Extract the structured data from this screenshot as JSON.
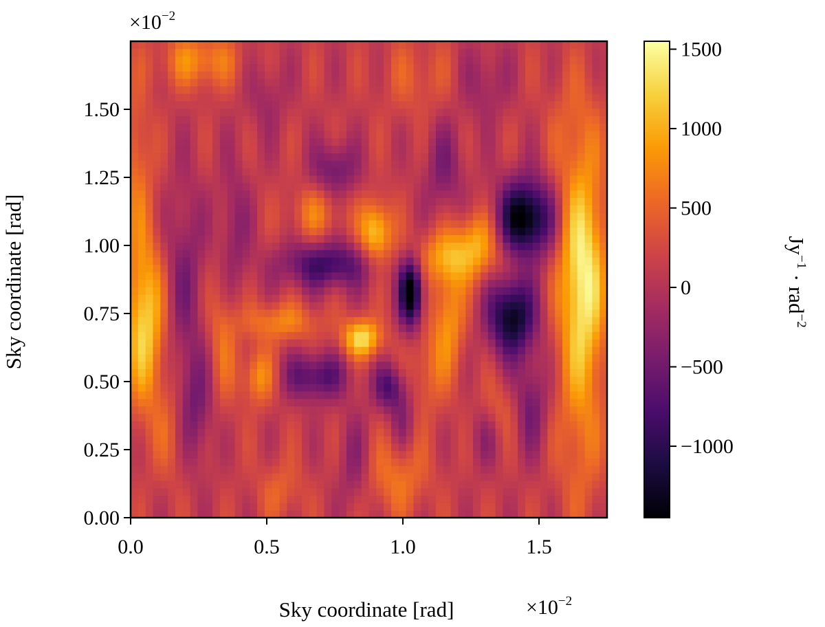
{
  "chart_data": {
    "type": "heatmap",
    "xlabel": "Sky coordinate [rad]",
    "ylabel": "Sky coordinate [rad]",
    "x_scale_text": "×10",
    "x_scale_exp": "−2",
    "y_scale_text": "×10",
    "y_scale_exp": "−2",
    "xlim": [
      0.0,
      1.75
    ],
    "ylim": [
      0.0,
      1.75
    ],
    "x_ticks": [
      {
        "value": 0.0,
        "label": "0.0"
      },
      {
        "value": 0.5,
        "label": "0.5"
      },
      {
        "value": 1.0,
        "label": "1.0"
      },
      {
        "value": 1.5,
        "label": "1.5"
      }
    ],
    "y_ticks": [
      {
        "value": 0.0,
        "label": "0.00"
      },
      {
        "value": 0.25,
        "label": "0.25"
      },
      {
        "value": 0.5,
        "label": "0.50"
      },
      {
        "value": 0.75,
        "label": "0.75"
      },
      {
        "value": 1.0,
        "label": "1.00"
      },
      {
        "value": 1.25,
        "label": "1.25"
      },
      {
        "value": 1.5,
        "label": "1.50"
      }
    ],
    "colormap": "inferno",
    "color_stops": [
      "#000004",
      "#1b0c41",
      "#4a0c6b",
      "#781c6d",
      "#a52c60",
      "#cf4446",
      "#ed6925",
      "#fb9b06",
      "#f7d13d",
      "#fcffa4"
    ],
    "colorbar": {
      "vmin": -1450,
      "vmax": 1550,
      "label_main": "Jy",
      "label_exp1": "−1",
      "label_mid": " · rad",
      "label_exp2": "−2",
      "ticks": [
        {
          "value": 1500,
          "label": "1500"
        },
        {
          "value": 1000,
          "label": "1000"
        },
        {
          "value": 500,
          "label": "500"
        },
        {
          "value": 0,
          "label": "0"
        },
        {
          "value": -500,
          "label": "−500"
        },
        {
          "value": -1000,
          "label": "−1000"
        }
      ]
    },
    "field": {
      "base": 120,
      "blobs": [
        {
          "x": 0.05,
          "y": 0.72,
          "sx": 0.05,
          "sy": 0.22,
          "a": 1150
        },
        {
          "x": 0.02,
          "y": 1.3,
          "sx": 0.04,
          "sy": 0.2,
          "a": 450
        },
        {
          "x": 1.66,
          "y": 0.88,
          "sx": 0.06,
          "sy": 0.3,
          "a": 1400
        },
        {
          "x": 1.65,
          "y": 0.25,
          "sx": 0.06,
          "sy": 0.22,
          "a": 350
        },
        {
          "x": 1.63,
          "y": 1.45,
          "sx": 0.07,
          "sy": 0.15,
          "a": 250
        },
        {
          "x": 0.9,
          "y": 1.05,
          "sx": 0.04,
          "sy": 0.08,
          "a": 1100
        },
        {
          "x": 0.85,
          "y": 0.66,
          "sx": 0.05,
          "sy": 0.05,
          "a": 1200
        },
        {
          "x": 1.2,
          "y": 0.96,
          "sx": 0.12,
          "sy": 0.07,
          "a": 800
        },
        {
          "x": 1.27,
          "y": 1.05,
          "sx": 0.05,
          "sy": 0.07,
          "a": 500
        },
        {
          "x": 1.17,
          "y": 0.74,
          "sx": 0.04,
          "sy": 0.14,
          "a": 700
        },
        {
          "x": 1.09,
          "y": 0.55,
          "sx": 0.05,
          "sy": 0.12,
          "a": 400
        },
        {
          "x": 0.55,
          "y": 0.72,
          "sx": 0.1,
          "sy": 0.05,
          "a": 600
        },
        {
          "x": 0.47,
          "y": 0.52,
          "sx": 0.04,
          "sy": 0.07,
          "a": 700
        },
        {
          "x": 0.34,
          "y": 0.66,
          "sx": 0.04,
          "sy": 0.18,
          "a": 450
        },
        {
          "x": 0.68,
          "y": 1.12,
          "sx": 0.07,
          "sy": 0.07,
          "a": 500
        },
        {
          "x": 0.25,
          "y": 1.68,
          "sx": 0.1,
          "sy": 0.07,
          "a": 650
        },
        {
          "x": 0.16,
          "y": 0.33,
          "sx": 0.05,
          "sy": 0.14,
          "a": 400
        },
        {
          "x": 0.98,
          "y": 0.15,
          "sx": 0.08,
          "sy": 0.1,
          "a": 500
        },
        {
          "x": 0.55,
          "y": 0.1,
          "sx": 0.06,
          "sy": 0.08,
          "a": 350
        },
        {
          "x": 1.05,
          "y": 1.62,
          "sx": 0.09,
          "sy": 0.1,
          "a": 300
        },
        {
          "x": 1.35,
          "y": 0.4,
          "sx": 0.05,
          "sy": 0.08,
          "a": 300
        },
        {
          "x": 1.45,
          "y": 1.1,
          "sx": 0.07,
          "sy": 0.1,
          "a": -1700
        },
        {
          "x": 1.4,
          "y": 0.74,
          "sx": 0.06,
          "sy": 0.1,
          "a": -1500
        },
        {
          "x": 1.03,
          "y": 0.83,
          "sx": 0.03,
          "sy": 0.09,
          "a": -1750
        },
        {
          "x": 0.72,
          "y": 0.93,
          "sx": 0.12,
          "sy": 0.06,
          "a": -1000
        },
        {
          "x": 0.68,
          "y": 0.52,
          "sx": 0.08,
          "sy": 0.06,
          "a": -900
        },
        {
          "x": 0.95,
          "y": 0.48,
          "sx": 0.04,
          "sy": 0.06,
          "a": -850
        },
        {
          "x": 0.75,
          "y": 1.28,
          "sx": 0.06,
          "sy": 0.07,
          "a": -650
        },
        {
          "x": 0.23,
          "y": 0.4,
          "sx": 0.05,
          "sy": 0.15,
          "a": -650
        },
        {
          "x": 0.2,
          "y": 0.9,
          "sx": 0.05,
          "sy": 0.25,
          "a": -500
        },
        {
          "x": 0.38,
          "y": 1.05,
          "sx": 0.04,
          "sy": 0.18,
          "a": -450
        },
        {
          "x": 1.47,
          "y": 0.42,
          "sx": 0.04,
          "sy": 0.12,
          "a": -600
        },
        {
          "x": 1.15,
          "y": 1.28,
          "sx": 0.05,
          "sy": 0.12,
          "a": -500
        },
        {
          "x": 0.82,
          "y": 0.2,
          "sx": 0.04,
          "sy": 0.12,
          "a": -400
        },
        {
          "x": 1.3,
          "y": 0.3,
          "sx": 0.04,
          "sy": 0.08,
          "a": -350
        },
        {
          "x": 1.0,
          "y": 0.36,
          "sx": 0.03,
          "sy": 0.08,
          "a": -400
        },
        {
          "x": 0.5,
          "y": 1.55,
          "sx": 0.05,
          "sy": 0.1,
          "a": -300
        },
        {
          "x": 1.3,
          "y": 1.6,
          "sx": 0.06,
          "sy": 0.1,
          "a": -350
        }
      ],
      "stripes": {
        "amplitude": 200,
        "x_period": 0.16,
        "y_period": 0.55,
        "phase": 0.3
      }
    }
  }
}
